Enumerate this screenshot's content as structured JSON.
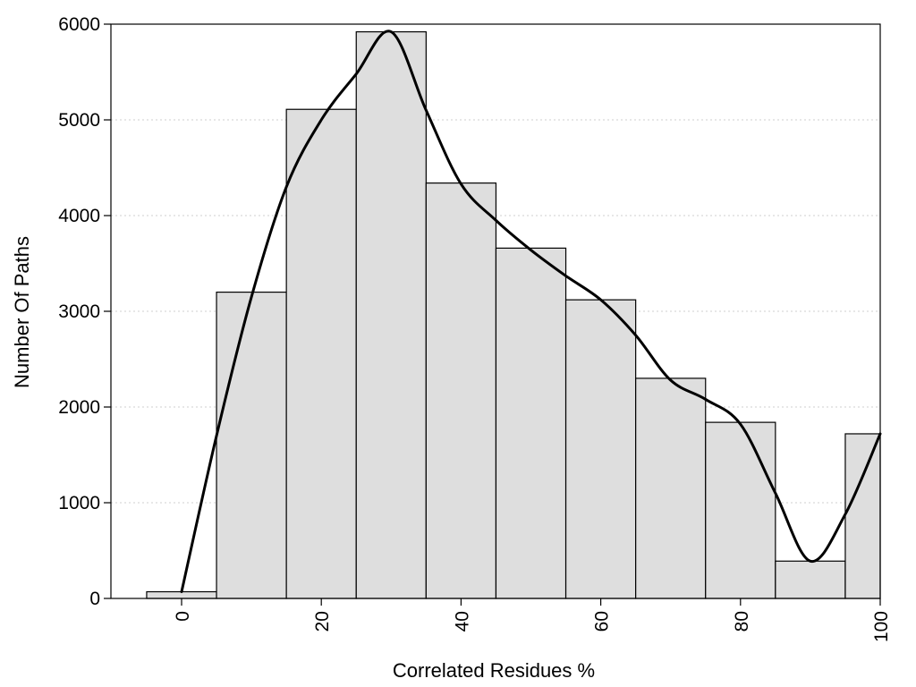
{
  "chart_data": {
    "type": "bar",
    "title": "",
    "xlabel": "Correlated Residues %",
    "ylabel": "Number Of Paths",
    "xlim": [
      -10,
      100
    ],
    "ylim": [
      0,
      6000
    ],
    "x_ticks": [
      0,
      20,
      40,
      60,
      80,
      100
    ],
    "y_ticks": [
      0,
      1000,
      2000,
      3000,
      4000,
      5000,
      6000
    ],
    "grid": "horizontal dotted",
    "bars": [
      {
        "x0": -5,
        "x1": 5,
        "value": 70
      },
      {
        "x0": 5,
        "x1": 15,
        "value": 3200
      },
      {
        "x0": 15,
        "x1": 25,
        "value": 5110
      },
      {
        "x0": 25,
        "x1": 35,
        "value": 5920
      },
      {
        "x0": 35,
        "x1": 45,
        "value": 4340
      },
      {
        "x0": 45,
        "x1": 55,
        "value": 3660
      },
      {
        "x0": 55,
        "x1": 65,
        "value": 3120
      },
      {
        "x0": 65,
        "x1": 75,
        "value": 2300
      },
      {
        "x0": 75,
        "x1": 85,
        "value": 1840
      },
      {
        "x0": 85,
        "x1": 95,
        "value": 390
      },
      {
        "x0": 95,
        "x1": 105,
        "value": 1720
      }
    ],
    "curve": [
      [
        0,
        70
      ],
      [
        5,
        1700
      ],
      [
        10,
        3150
      ],
      [
        15,
        4300
      ],
      [
        20,
        5000
      ],
      [
        25,
        5480
      ],
      [
        30,
        5920
      ],
      [
        35,
        5100
      ],
      [
        40,
        4330
      ],
      [
        45,
        3950
      ],
      [
        50,
        3640
      ],
      [
        55,
        3370
      ],
      [
        60,
        3120
      ],
      [
        65,
        2750
      ],
      [
        70,
        2280
      ],
      [
        75,
        2080
      ],
      [
        80,
        1820
      ],
      [
        85,
        1100
      ],
      [
        90,
        390
      ],
      [
        95,
        880
      ],
      [
        100,
        1720
      ]
    ],
    "colors": {
      "bar_fill": "#dedede",
      "bar_stroke": "#000000",
      "curve": "#000000"
    }
  }
}
